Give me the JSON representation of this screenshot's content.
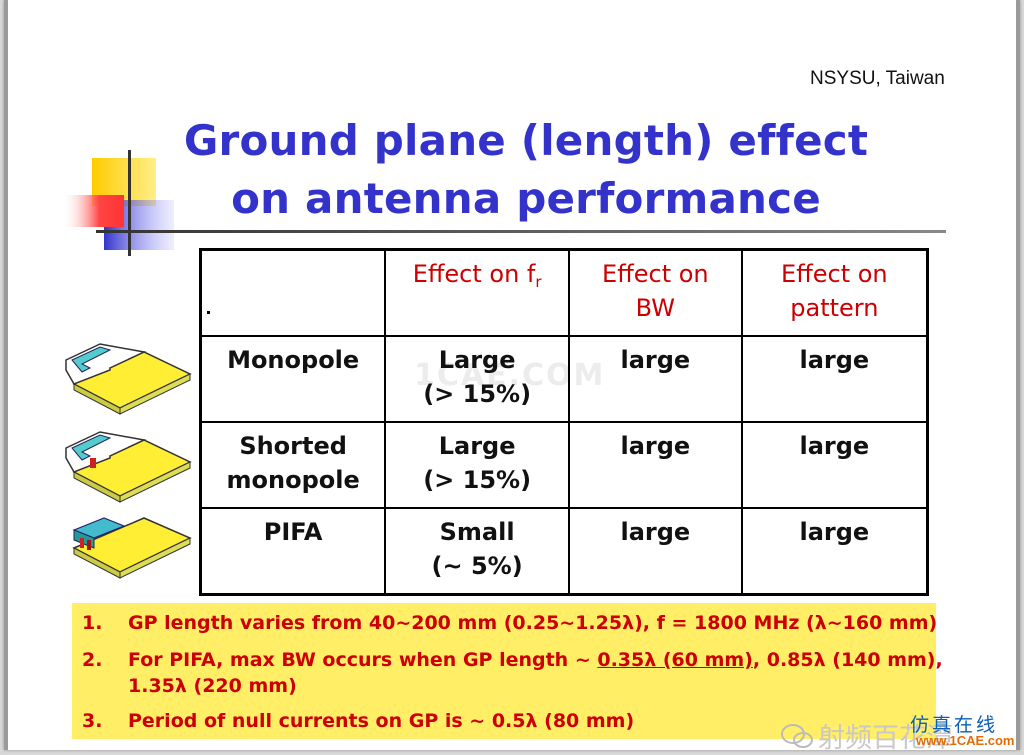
{
  "header": {
    "source": "NSYSU, Taiwan",
    "title_line1": "Ground plane (length) effect",
    "title_line2": "on antenna performance"
  },
  "table": {
    "headers": {
      "c1_main": "Effect on f",
      "c1_sub": "r",
      "c2_line1": "Effect on",
      "c2_line2": "BW",
      "c3_line1": "Effect on",
      "c3_line2": "pattern"
    },
    "rows": [
      {
        "name_line1": "Monopole",
        "name_line2": "",
        "fr_line1": "Large",
        "fr_line2": "(> 15%)",
        "bw": "large",
        "pattern": "large"
      },
      {
        "name_line1": "Shorted",
        "name_line2": "monopole",
        "fr_line1": "Large",
        "fr_line2": "(> 15%)",
        "bw": "large",
        "pattern": "large"
      },
      {
        "name_line1": "PIFA",
        "name_line2": "",
        "fr_line1": "Small",
        "fr_line2": "(~ 5%)",
        "bw": "large",
        "pattern": "large"
      }
    ]
  },
  "notes": [
    {
      "num": "1.",
      "text": "GP length varies from 40~200 mm (0.25~1.25λ), f = 1800 MHz (λ~160 mm)"
    },
    {
      "num": "2.",
      "text_pre": "For PIFA, max BW occurs when GP length ~ ",
      "text_underlined": "0.35λ (60 mm)",
      "text_post": ", 0.85λ (140 mm),",
      "text_line2": "1.35λ (220 mm)"
    },
    {
      "num": "3.",
      "text": "Period of null currents on GP is ~ 0.5λ (80 mm)"
    }
  ],
  "watermarks": {
    "center": "1CAE.COM",
    "wechat_text": "射频百花潭",
    "site_top": "仿真在线",
    "site_bottom": "www.1CAE.com"
  },
  "colors": {
    "title": "#3333cc",
    "header_red": "#cc0000",
    "notes_bg": "#ffee66",
    "deco_yellow": "#ffcc00",
    "deco_blue": "#3333cc",
    "deco_red": "#ff3333"
  },
  "icons": [
    "monopole-antenna-icon",
    "shorted-monopole-antenna-icon",
    "pifa-antenna-icon",
    "wechat-icon"
  ]
}
